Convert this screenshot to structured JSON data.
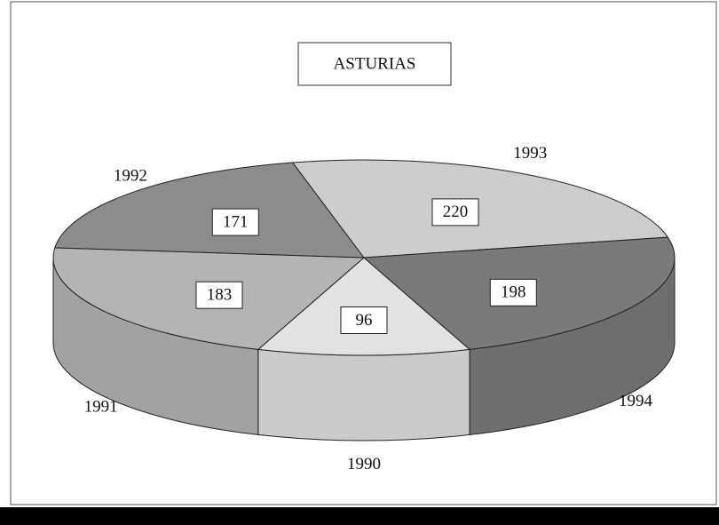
{
  "chart_data": {
    "type": "pie",
    "title": "ASTURIAS",
    "categories": [
      "1990",
      "1991",
      "1992",
      "1993",
      "1994"
    ],
    "values": [
      96,
      183,
      171,
      220,
      198
    ],
    "colors": [
      "#e2e2e2",
      "#b4b4b4",
      "#8c8c8c",
      "#cdcdcd",
      "#7a7a7a"
    ]
  }
}
